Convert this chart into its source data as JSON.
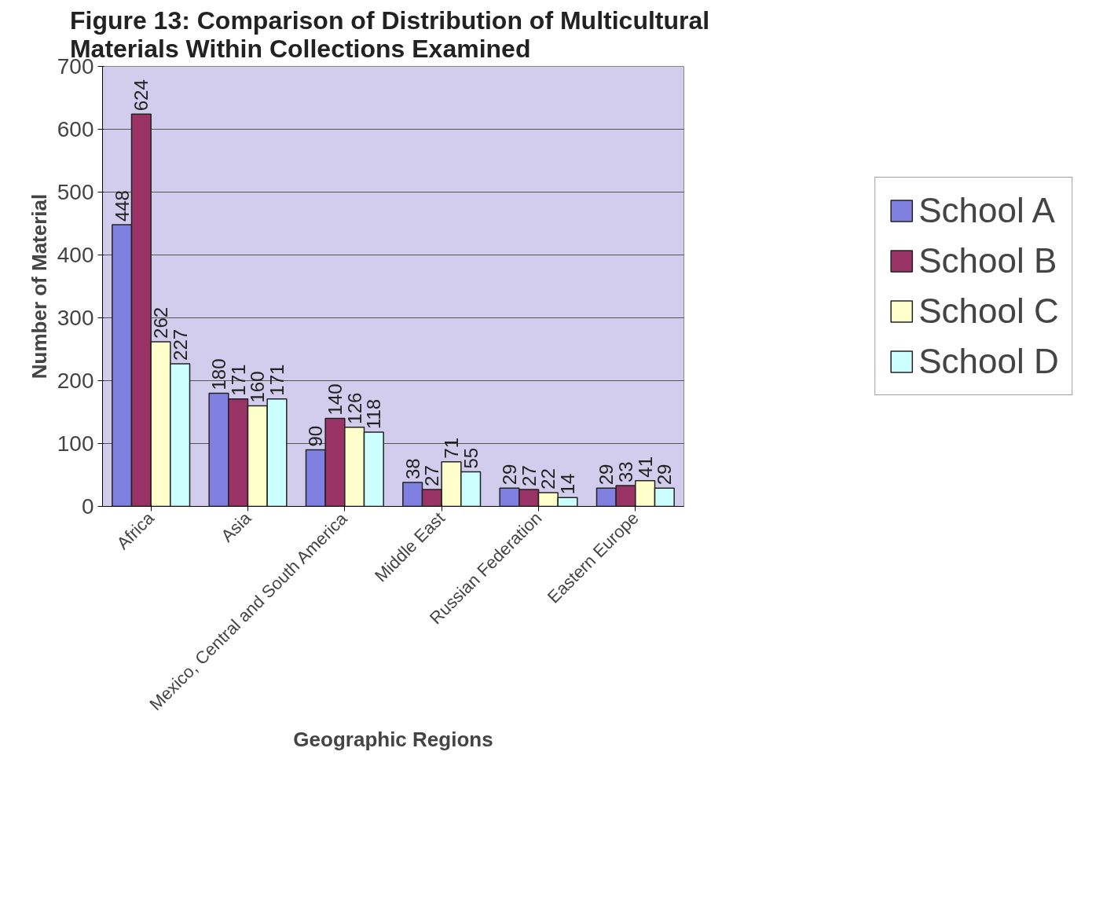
{
  "chart_data": {
    "type": "bar",
    "title": "Figure 13:  Comparison of Distribution of Multicultural Materials Within Collections Examined",
    "xlabel": "Geographic Regions",
    "ylabel": "Number of Material",
    "categories": [
      "Africa",
      "Asia",
      "Mexico, Central and South America",
      "Middle East",
      "Russian Federation",
      "Eastern Europe"
    ],
    "series": [
      {
        "name": "School A",
        "color": "#8080e0",
        "values": [
          448,
          180,
          90,
          38,
          29,
          29
        ]
      },
      {
        "name": "School B",
        "color": "#993366",
        "values": [
          624,
          171,
          140,
          27,
          27,
          33
        ]
      },
      {
        "name": "School C",
        "color": "#ffffcc",
        "values": [
          262,
          160,
          126,
          71,
          22,
          41
        ]
      },
      {
        "name": "School D",
        "color": "#ccffff",
        "values": [
          227,
          171,
          118,
          55,
          14,
          29
        ]
      }
    ],
    "ylim": [
      0,
      700
    ],
    "yticks": [
      0,
      100,
      200,
      300,
      400,
      500,
      600,
      700
    ],
    "grid": "y",
    "legend": "right",
    "data_labels": true
  }
}
